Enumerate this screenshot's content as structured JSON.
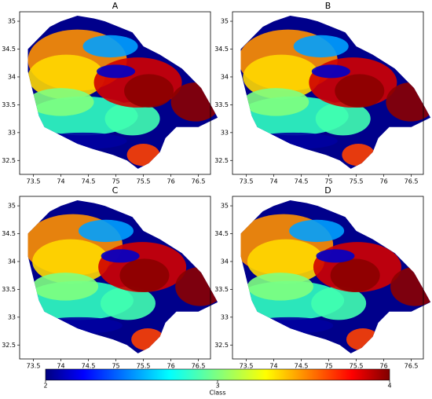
{
  "panels": [
    {
      "title": "A",
      "xlim": [
        73.25,
        76.72
      ],
      "ylim": [
        32.25,
        35.17
      ],
      "xticks": [
        73.5,
        74.0,
        74.5,
        75.0,
        75.5,
        76.0,
        76.5
      ],
      "yticks": [
        32.5,
        33.0,
        33.5,
        34.0,
        34.5,
        35.0
      ]
    },
    {
      "title": "B",
      "xlim": [
        73.25,
        76.72
      ],
      "ylim": [
        32.25,
        35.17
      ],
      "xticks": [
        73.5,
        74.0,
        74.5,
        75.0,
        75.5,
        76.0,
        76.5
      ],
      "yticks": [
        32.5,
        33.0,
        33.5,
        34.0,
        34.5,
        35.0
      ]
    },
    {
      "title": "C",
      "xlim": [
        73.25,
        76.72
      ],
      "ylim": [
        32.25,
        35.17
      ],
      "xticks": [
        73.5,
        74.0,
        74.5,
        75.0,
        75.5,
        76.0,
        76.5
      ],
      "yticks": [
        32.5,
        33.0,
        33.5,
        34.0,
        34.5,
        35.0
      ]
    },
    {
      "title": "D",
      "xlim": [
        73.25,
        76.72
      ],
      "ylim": [
        32.25,
        35.17
      ],
      "xticks": [
        73.5,
        74.0,
        74.5,
        75.0,
        75.5,
        76.0,
        76.5
      ],
      "yticks": [
        32.5,
        33.0,
        33.5,
        34.0,
        34.5,
        35.0
      ]
    }
  ],
  "colorbar": {
    "label": "Class",
    "lim": [
      2,
      4
    ],
    "ticks": [
      2,
      3,
      4
    ]
  }
}
